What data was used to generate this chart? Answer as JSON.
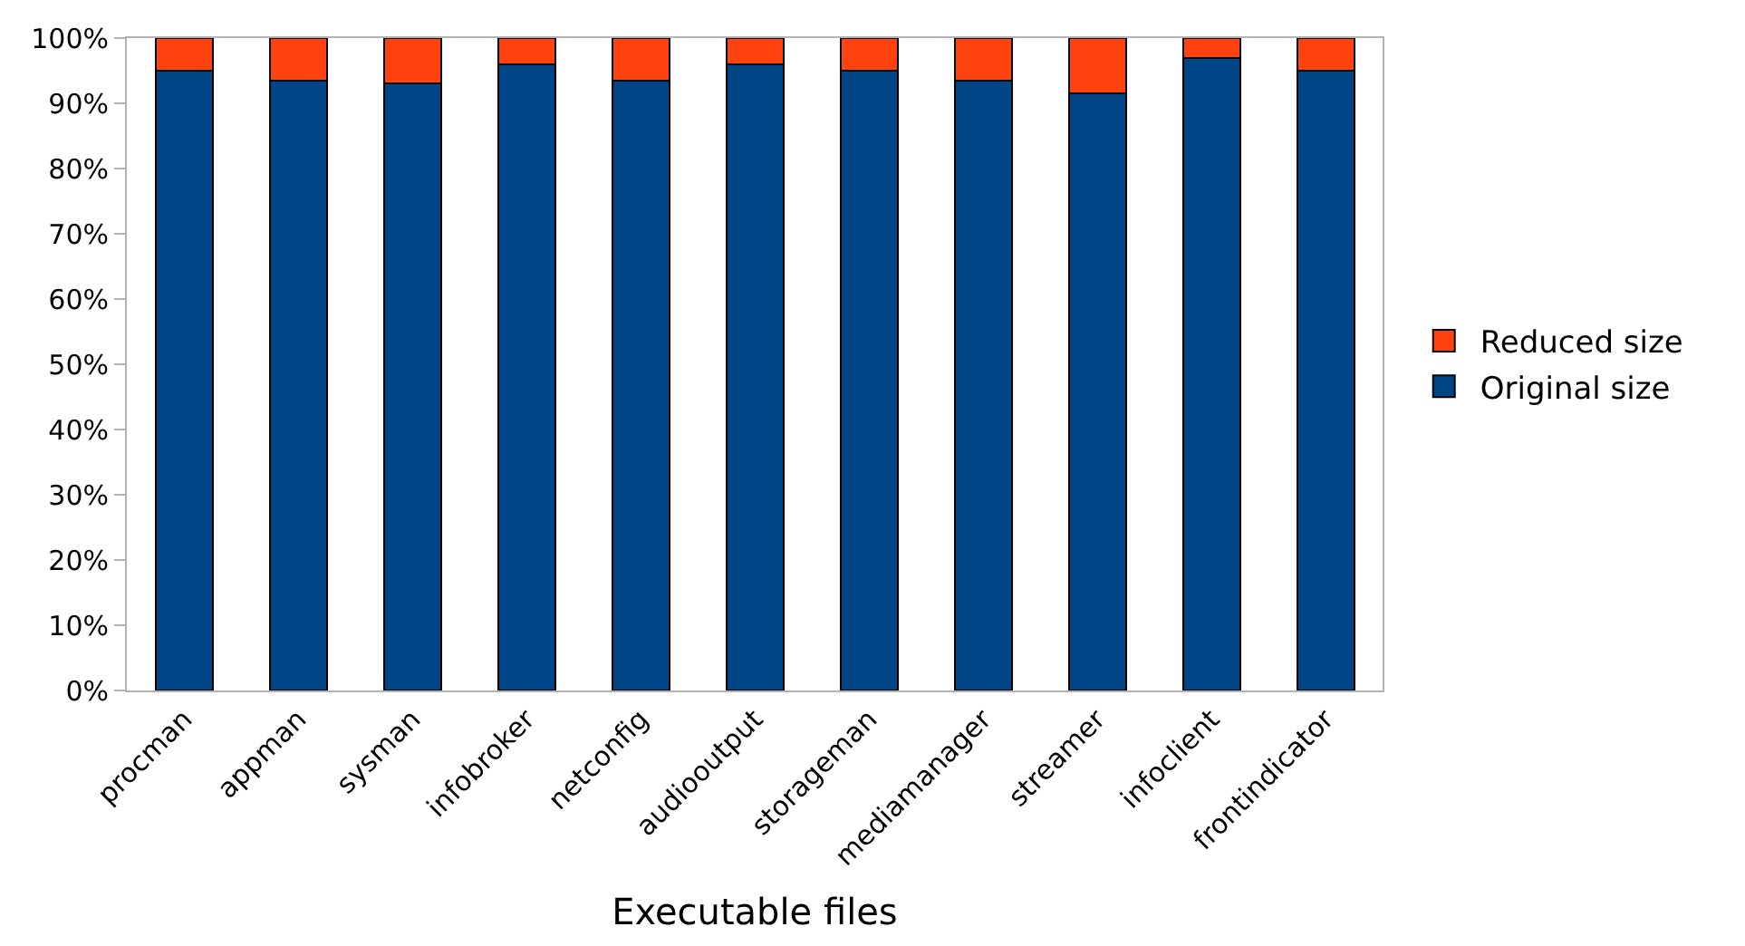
{
  "chart_data": {
    "type": "bar",
    "stacked": true,
    "xlabel": "Executable files",
    "categories": [
      "procman",
      "appman",
      "sysman",
      "infobroker",
      "netconfig",
      "audiooutput",
      "storageman",
      "mediamanager",
      "streamer",
      "infoclient",
      "frontindicator"
    ],
    "series": [
      {
        "name": "Original size",
        "color": "#004586",
        "values": [
          95,
          93.5,
          93,
          96,
          93.5,
          96,
          95,
          93.5,
          91.5,
          97,
          95
        ]
      },
      {
        "name": "Reduced size",
        "color": "#ff420e",
        "values": [
          5,
          6.5,
          7,
          4,
          6.5,
          4,
          5,
          6.5,
          8.5,
          3,
          5
        ]
      }
    ],
    "ylim": [
      0,
      100
    ],
    "yticks": [
      {
        "value": 0,
        "label": "0%"
      },
      {
        "value": 10,
        "label": "10%"
      },
      {
        "value": 20,
        "label": "20%"
      },
      {
        "value": 30,
        "label": "30%"
      },
      {
        "value": 40,
        "label": "40%"
      },
      {
        "value": 50,
        "label": "50%"
      },
      {
        "value": 60,
        "label": "60%"
      },
      {
        "value": 70,
        "label": "70%"
      },
      {
        "value": 80,
        "label": "80%"
      },
      {
        "value": 90,
        "label": "90%"
      },
      {
        "value": 100,
        "label": "100%"
      }
    ],
    "grid": false,
    "legend": "right"
  }
}
